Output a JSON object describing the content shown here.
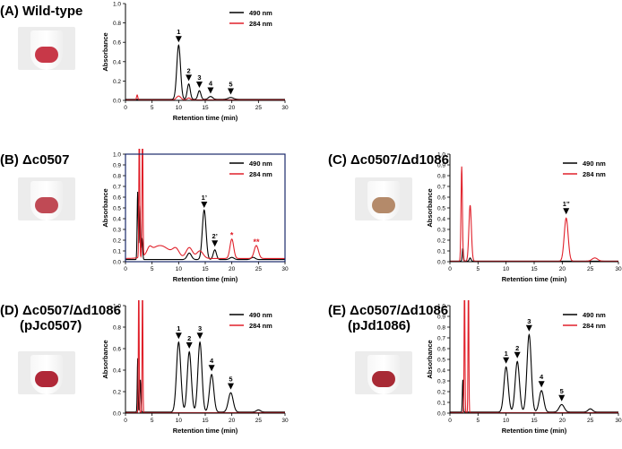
{
  "panels": [
    {
      "id": "A",
      "title": "(A) Wild-type",
      "title_lines": [
        "(A) Wild-type"
      ],
      "sample_color": "#c83848",
      "chart_data": {
        "type": "line",
        "xlabel": "Retention time (min)",
        "ylabel": "Absorbance",
        "xlim": [
          0,
          30
        ],
        "ylim": [
          0,
          1.0
        ],
        "xticks": [
          0,
          5,
          10,
          15,
          20,
          25,
          30
        ],
        "yticks": [
          0,
          0.2,
          0.4,
          0.6,
          0.8,
          1.0
        ],
        "legend": "top-right",
        "series": [
          {
            "name": "490 nm",
            "color": "#000000",
            "baseline": 0.01,
            "peaks": [
              [
                10.0,
                0.56,
                0.35
              ],
              [
                11.9,
                0.16,
                0.28
              ],
              [
                13.9,
                0.09,
                0.28
              ],
              [
                16.0,
                0.03,
                0.4
              ],
              [
                19.8,
                0.02,
                0.5
              ]
            ]
          },
          {
            "name": "284 nm",
            "color": "#e0202a",
            "baseline": 0.005,
            "peaks": [
              [
                2.2,
                0.05,
                0.12
              ],
              [
                10.0,
                0.04,
                0.4
              ],
              [
                11.9,
                0.02,
                0.3
              ]
            ]
          }
        ],
        "annotations": [
          {
            "label": "1",
            "x": 10.0,
            "y": 0.6
          },
          {
            "label": "2",
            "x": 11.9,
            "y": 0.2
          },
          {
            "label": "3",
            "x": 13.9,
            "y": 0.13
          },
          {
            "label": "4",
            "x": 16.0,
            "y": 0.07
          },
          {
            "label": "5",
            "x": 19.8,
            "y": 0.06
          }
        ]
      }
    },
    {
      "id": "B",
      "title_lines": [
        "(B) Δc0507"
      ],
      "sample_color": "#c04a55",
      "chart_data": {
        "type": "line",
        "xlabel": "Retention time (min)",
        "ylabel": "Absorbance",
        "xlim": [
          0,
          30
        ],
        "ylim": [
          0,
          1.0
        ],
        "xticks": [
          0,
          5,
          10,
          15,
          20,
          25,
          30
        ],
        "yticks": [
          0,
          0.1,
          0.2,
          0.3,
          0.4,
          0.5,
          0.6,
          0.7,
          0.8,
          0.9,
          1.0
        ],
        "legend": "top-right",
        "series": [
          {
            "name": "490 nm",
            "color": "#000000",
            "baseline": 0.02,
            "peaks": [
              [
                2.3,
                0.63,
                0.1
              ],
              [
                2.7,
                0.5,
                0.1
              ],
              [
                3.1,
                0.2,
                0.12
              ],
              [
                12.0,
                0.06,
                0.4
              ],
              [
                14.8,
                0.46,
                0.35
              ],
              [
                16.8,
                0.09,
                0.3
              ],
              [
                20.0,
                0.02,
                0.4
              ],
              [
                24.0,
                0.02,
                0.4
              ]
            ]
          },
          {
            "name": "284 nm",
            "color": "#e0202a",
            "baseline": 0.03,
            "peaks": [
              [
                2.6,
                1.3,
                0.08
              ],
              [
                3.2,
                1.3,
                0.08
              ],
              [
                4.5,
                0.05,
                0.4
              ],
              [
                6.5,
                0.12,
                1.8
              ],
              [
                9.5,
                0.07,
                0.6
              ],
              [
                12.0,
                0.1,
                0.6
              ],
              [
                14.0,
                0.07,
                0.6
              ],
              [
                20.0,
                0.18,
                0.35
              ],
              [
                24.6,
                0.12,
                0.4
              ]
            ]
          }
        ],
        "annotations": [
          {
            "label": "1’",
            "x": 14.8,
            "y": 0.5
          },
          {
            "label": "2’",
            "x": 16.8,
            "y": 0.14
          },
          {
            "label": "*",
            "x": 20.0,
            "y": 0.22
          },
          {
            "label": "**",
            "x": 24.6,
            "y": 0.16
          }
        ]
      }
    },
    {
      "id": "C",
      "title_lines": [
        "(C) Δc0507/Δd1086"
      ],
      "sample_color": "#b48a6a",
      "chart_data": {
        "type": "line",
        "xlabel": "Retention time (min)",
        "ylabel": "Absorbance",
        "xlim": [
          0,
          30
        ],
        "ylim": [
          0,
          1.0
        ],
        "xticks": [
          0,
          5,
          10,
          15,
          20,
          25,
          30
        ],
        "yticks": [
          0,
          0.1,
          0.2,
          0.3,
          0.4,
          0.5,
          0.6,
          0.7,
          0.8,
          0.9,
          1.0
        ],
        "legend": "top-right",
        "series": [
          {
            "name": "490 nm",
            "color": "#000000",
            "baseline": 0.005,
            "peaks": [
              [
                2.3,
                0.12,
                0.1
              ],
              [
                3.6,
                0.03,
                0.15
              ]
            ]
          },
          {
            "name": "284 nm",
            "color": "#e0202a",
            "baseline": 0.005,
            "peaks": [
              [
                2.1,
                0.88,
                0.12
              ],
              [
                3.6,
                0.52,
                0.22
              ],
              [
                20.7,
                0.4,
                0.35
              ],
              [
                25.8,
                0.03,
                0.5
              ]
            ]
          }
        ],
        "annotations": [
          {
            "label": "1’’",
            "x": 20.7,
            "y": 0.44
          }
        ]
      }
    },
    {
      "id": "D",
      "title_lines": [
        "(D) Δc0507/Δd1086",
        "(pJc0507)"
      ],
      "sample_color": "#b02838",
      "chart_data": {
        "type": "line",
        "xlabel": "Retention time (min)",
        "ylabel": "Absorbance",
        "xlim": [
          0,
          30
        ],
        "ylim": [
          0,
          1.0
        ],
        "xticks": [
          0,
          5,
          10,
          15,
          20,
          25,
          30
        ],
        "yticks": [
          0,
          0.2,
          0.4,
          0.6,
          0.8,
          1.0
        ],
        "legend": "top-right",
        "series": [
          {
            "name": "490 nm",
            "color": "#000000",
            "baseline": 0.01,
            "peaks": [
              [
                2.3,
                0.5,
                0.08
              ],
              [
                2.8,
                0.3,
                0.1
              ],
              [
                10.0,
                0.65,
                0.4
              ],
              [
                12.0,
                0.56,
                0.38
              ],
              [
                14.0,
                0.65,
                0.38
              ],
              [
                16.2,
                0.35,
                0.4
              ],
              [
                19.8,
                0.18,
                0.45
              ],
              [
                25.0,
                0.02,
                0.4
              ]
            ]
          },
          {
            "name": "284 nm",
            "color": "#e0202a",
            "baseline": 0.005,
            "peaks": [
              [
                2.5,
                1.3,
                0.07
              ],
              [
                3.2,
                1.3,
                0.07
              ]
            ]
          }
        ],
        "annotations": [
          {
            "label": "1",
            "x": 10.0,
            "y": 0.69
          },
          {
            "label": "2",
            "x": 12.0,
            "y": 0.6
          },
          {
            "label": "3",
            "x": 14.0,
            "y": 0.69
          },
          {
            "label": "4",
            "x": 16.2,
            "y": 0.39
          },
          {
            "label": "5",
            "x": 19.8,
            "y": 0.22
          }
        ]
      }
    },
    {
      "id": "E",
      "title_lines": [
        "(E) Δc0507/Δd1086",
        "(pJd1086)"
      ],
      "sample_color": "#a82a35",
      "chart_data": {
        "type": "line",
        "xlabel": "Retention time (min)",
        "ylabel": "Absorbance",
        "xlim": [
          0,
          30
        ],
        "ylim": [
          0,
          1.0
        ],
        "xticks": [
          0,
          5,
          10,
          15,
          20,
          25,
          30
        ],
        "yticks": [
          0,
          0.1,
          0.2,
          0.3,
          0.4,
          0.5,
          0.6,
          0.7,
          0.8,
          0.9,
          1.0
        ],
        "legend": "top-right",
        "series": [
          {
            "name": "490 nm",
            "color": "#000000",
            "baseline": 0.01,
            "peaks": [
              [
                2.3,
                0.3,
                0.08
              ],
              [
                10.0,
                0.42,
                0.38
              ],
              [
                12.0,
                0.47,
                0.38
              ],
              [
                14.1,
                0.72,
                0.38
              ],
              [
                16.3,
                0.2,
                0.4
              ],
              [
                19.9,
                0.07,
                0.45
              ],
              [
                25.0,
                0.03,
                0.4
              ]
            ]
          },
          {
            "name": "284 nm",
            "color": "#e0202a",
            "baseline": 0.005,
            "peaks": [
              [
                2.6,
                1.3,
                0.07
              ],
              [
                3.3,
                1.3,
                0.07
              ]
            ]
          }
        ],
        "annotations": [
          {
            "label": "1",
            "x": 10.0,
            "y": 0.46
          },
          {
            "label": "2",
            "x": 12.0,
            "y": 0.51
          },
          {
            "label": "3",
            "x": 14.1,
            "y": 0.76
          },
          {
            "label": "4",
            "x": 16.3,
            "y": 0.24
          },
          {
            "label": "5",
            "x": 19.9,
            "y": 0.11
          }
        ]
      }
    }
  ]
}
